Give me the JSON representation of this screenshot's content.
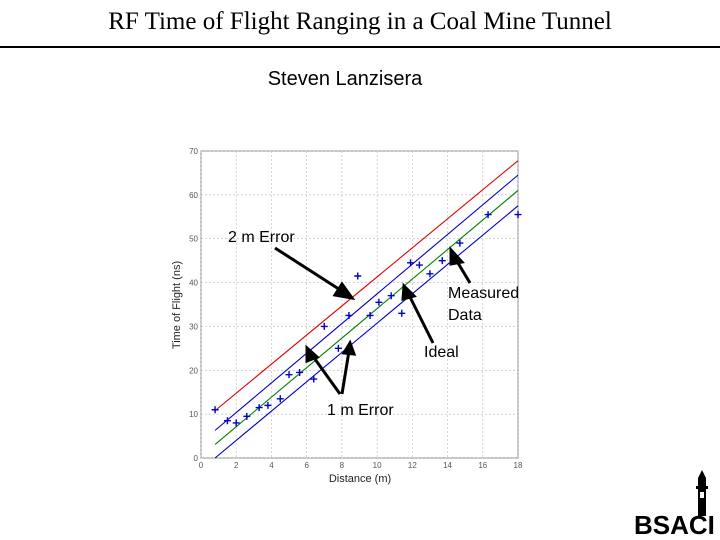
{
  "slide": {
    "title": "RF Time of Flight Ranging in a Coal Mine Tunnel",
    "author": "Steven Lanzisera",
    "logo_text": "BSACI"
  },
  "chart_data": {
    "type": "scatter",
    "xlabel": "Distance (m)",
    "ylabel": "Time of Flight (ns)",
    "xlim": [
      0,
      18
    ],
    "ylim": [
      0,
      70
    ],
    "xticks": [
      0,
      2,
      4,
      6,
      8,
      10,
      12,
      14,
      16,
      18
    ],
    "yticks": [
      0,
      10,
      20,
      30,
      40,
      50,
      60,
      70
    ],
    "grid": true,
    "lines": [
      {
        "name": "+2 m error",
        "color": "#e00000",
        "x": [
          0.8,
          18
        ],
        "y": [
          10.8,
          67.8
        ]
      },
      {
        "name": "+1 m error",
        "color": "#0000c8",
        "x": [
          0.8,
          18
        ],
        "y": [
          6.3,
          64.5
        ]
      },
      {
        "name": "Ideal",
        "color": "#008000",
        "x": [
          0.8,
          18
        ],
        "y": [
          3.1,
          61.0
        ]
      },
      {
        "name": "-1 m error",
        "color": "#0000c8",
        "x": [
          0.8,
          18
        ],
        "y": [
          0.0,
          57.5
        ]
      }
    ],
    "series": [
      {
        "name": "Measured Data",
        "color": "#0000c8",
        "x": [
          0.8,
          1.5,
          2.0,
          2.6,
          3.3,
          3.8,
          4.5,
          5.0,
          5.6,
          6.4,
          7.0,
          7.8,
          8.4,
          8.9,
          9.6,
          10.1,
          10.8,
          11.4,
          11.9,
          12.4,
          13.0,
          13.7,
          14.7,
          16.3,
          18.0
        ],
        "y": [
          11.0,
          8.5,
          8.0,
          9.5,
          11.5,
          12.0,
          13.5,
          19.0,
          19.5,
          18.0,
          30.0,
          25.0,
          32.5,
          41.5,
          32.5,
          35.5,
          37.0,
          33.0,
          44.5,
          44.0,
          42.0,
          45.0,
          49.0,
          55.5,
          55.5
        ]
      }
    ],
    "annotations": [
      {
        "text": "2 m Error"
      },
      {
        "text": "Measured"
      },
      {
        "text": "Data"
      },
      {
        "text": "Ideal"
      },
      {
        "text": "1 m Error"
      }
    ]
  }
}
